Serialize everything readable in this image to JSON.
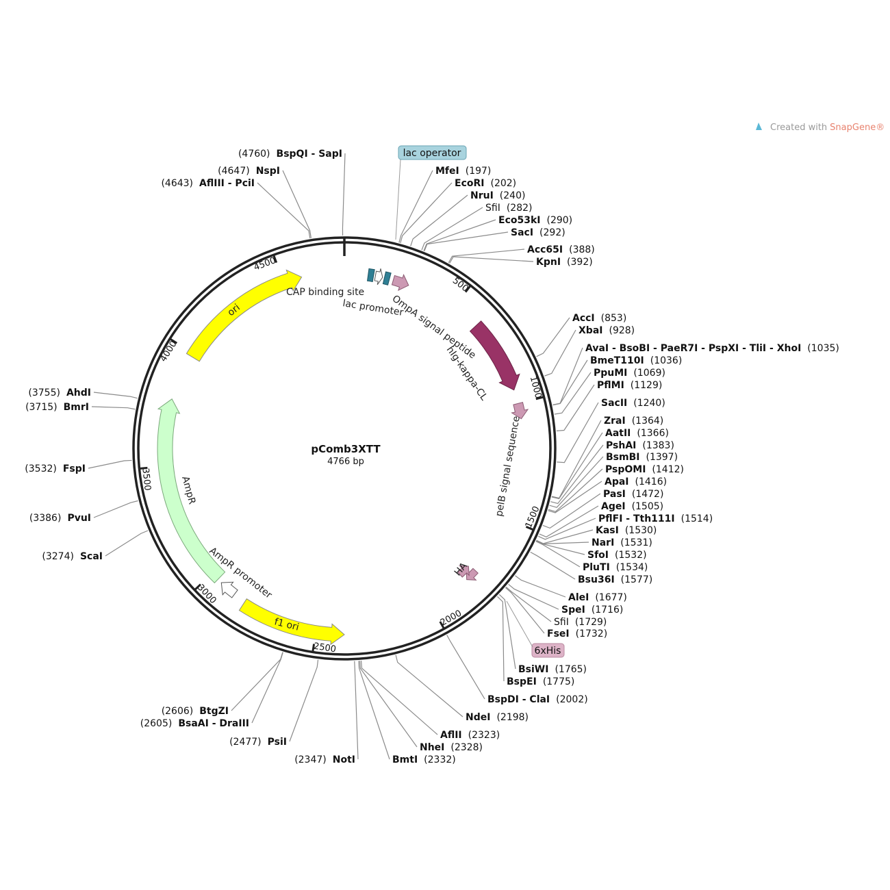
{
  "watermark": {
    "prefix": "Created with",
    "brand": "SnapGene®"
  },
  "plasmid": {
    "name": "pComb3XTT",
    "length": "4766 bp"
  },
  "ticks": [
    500,
    1000,
    1500,
    2000,
    2500,
    3000,
    3500,
    4000,
    4500
  ],
  "feature_tags": [
    "lac operator",
    "6xHis"
  ],
  "features": [
    "CAP binding site",
    "lac promoter",
    "OmpA signal peptide",
    "hIg-kappa-CL",
    "pelB signal sequence",
    "HA",
    "ori",
    "AmpR",
    "AmpR promoter",
    "f1 ori"
  ],
  "sites": [
    {
      "name": "BspQI - SapI",
      "position": "(4760)"
    },
    {
      "name": "NspI",
      "position": "(4647)"
    },
    {
      "name": "AflIII - PciI",
      "position": "(4643)"
    },
    {
      "name": "MfeI",
      "position": "(197)"
    },
    {
      "name": "EcoRI",
      "position": "(202)"
    },
    {
      "name": "NruI",
      "position": "(240)"
    },
    {
      "name": "SfiI",
      "position": "(282)"
    },
    {
      "name": "Eco53kI",
      "position": "(290)"
    },
    {
      "name": "SacI",
      "position": "(292)"
    },
    {
      "name": "Acc65I",
      "position": "(388)"
    },
    {
      "name": "KpnI",
      "position": "(392)"
    },
    {
      "name": "AccI",
      "position": "(853)"
    },
    {
      "name": "XbaI",
      "position": "(928)"
    },
    {
      "name": "AvaI - BsoBI - PaeR7I - PspXI - TliI - XhoI",
      "position": "(1035)"
    },
    {
      "name": "BmeT110I",
      "position": "(1036)"
    },
    {
      "name": "PpuMI",
      "position": "(1069)"
    },
    {
      "name": "PflMI",
      "position": "(1129)"
    },
    {
      "name": "SacII",
      "position": "(1240)"
    },
    {
      "name": "ZraI",
      "position": "(1364)"
    },
    {
      "name": "AatII",
      "position": "(1366)"
    },
    {
      "name": "PshAI",
      "position": "(1383)"
    },
    {
      "name": "BsmBI",
      "position": "(1397)"
    },
    {
      "name": "PspOMI",
      "position": "(1412)"
    },
    {
      "name": "ApaI",
      "position": "(1416)"
    },
    {
      "name": "PasI",
      "position": "(1472)"
    },
    {
      "name": "AgeI",
      "position": "(1505)"
    },
    {
      "name": "PflFI - Tth111I",
      "position": "(1514)"
    },
    {
      "name": "KasI",
      "position": "(1530)"
    },
    {
      "name": "NarI",
      "position": "(1531)"
    },
    {
      "name": "SfoI",
      "position": "(1532)"
    },
    {
      "name": "PluTI",
      "position": "(1534)"
    },
    {
      "name": "Bsu36I",
      "position": "(1577)"
    },
    {
      "name": "AleI",
      "position": "(1677)"
    },
    {
      "name": "SpeI",
      "position": "(1716)"
    },
    {
      "name": "SfiI",
      "position": "(1729)"
    },
    {
      "name": "FseI",
      "position": "(1732)"
    },
    {
      "name": "BsiWI",
      "position": "(1765)"
    },
    {
      "name": "BspEI",
      "position": "(1775)"
    },
    {
      "name": "BspDI - ClaI",
      "position": "(2002)"
    },
    {
      "name": "NdeI",
      "position": "(2198)"
    },
    {
      "name": "AflII",
      "position": "(2323)"
    },
    {
      "name": "NheI",
      "position": "(2328)"
    },
    {
      "name": "BmtI",
      "position": "(2332)"
    },
    {
      "name": "NotI",
      "position": "(2347)"
    },
    {
      "name": "PsiI",
      "position": "(2477)"
    },
    {
      "name": "BsaAI - DraIII",
      "position": "(2605)"
    },
    {
      "name": "BtgZI",
      "position": "(2606)"
    },
    {
      "name": "ScaI",
      "position": "(3274)"
    },
    {
      "name": "PvuI",
      "position": "(3386)"
    },
    {
      "name": "FspI",
      "position": "(3532)"
    },
    {
      "name": "BmrI",
      "position": "(3715)"
    },
    {
      "name": "AhdI",
      "position": "(3755)"
    }
  ]
}
